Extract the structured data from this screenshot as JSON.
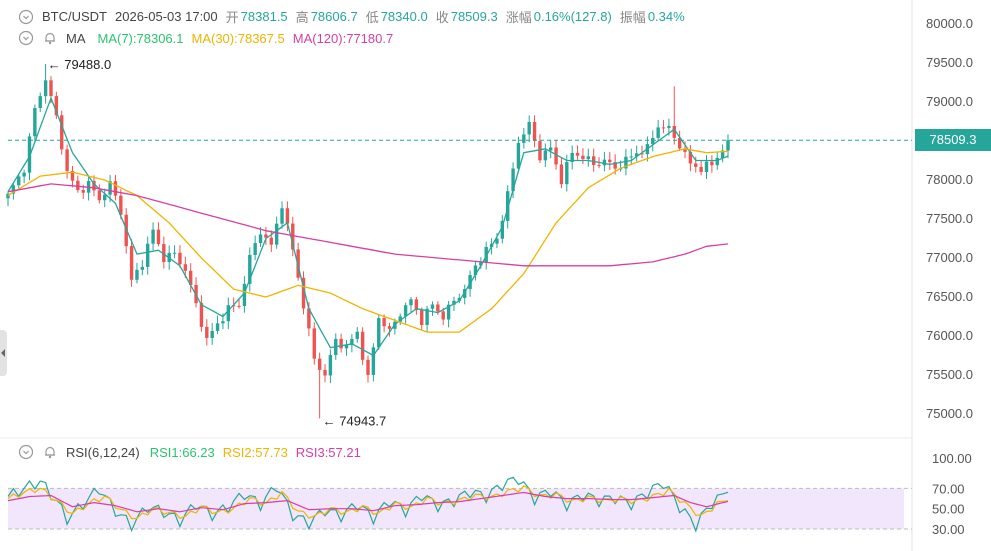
{
  "header": {
    "symbol": "BTC/USDT",
    "datetime": "2026-05-03 17:00",
    "open_label": "开",
    "open": "78381.5",
    "high_label": "高",
    "high": "78606.7",
    "low_label": "低",
    "low": "78340.0",
    "close_label": "收",
    "close": "78509.3",
    "change_label": "涨幅",
    "change": "0.16%(127.8)",
    "amplitude_label": "振幅",
    "amplitude": "0.34%"
  },
  "ma_legend": {
    "name": "MA",
    "ma7": "MA(7):78306.1",
    "ma30": "MA(30):78367.5",
    "ma120": "MA(120):77180.7"
  },
  "rsi_legend": {
    "name": "RSI(6,12,24)",
    "rsi1": "RSI1:66.23",
    "rsi2": "RSI2:57.73",
    "rsi3": "RSI3:57.21"
  },
  "price_label": "78509.3",
  "colors": {
    "up": "#26a69a",
    "down": "#ef5350",
    "ma7": "#26a69a",
    "ma30": "#f0b400",
    "ma120": "#d63fa6",
    "rsi1": "#26a69a",
    "rsi2": "#f0b400",
    "rsi3": "#d63fa6",
    "rsi_band": "#f1e6fb"
  },
  "chart_data": [
    {
      "type": "candlestick",
      "title": "BTC/USDT",
      "y_ticks": [
        80000.0,
        79500.0,
        79000.0,
        78500.0,
        78000.0,
        77500.0,
        77000.0,
        76500.0,
        76000.0,
        75500.0,
        75000.0
      ],
      "ylim": [
        74800,
        80150
      ],
      "current_price": 78509.3,
      "annotations": [
        {
          "text": "← 79488.0",
          "value": 79488.0,
          "label": "max"
        },
        {
          "text": "← 74943.7",
          "value": 74943.7,
          "label": "min"
        }
      ],
      "price_anchors": [
        [
          0,
          77800
        ],
        [
          3,
          78150
        ],
        [
          5,
          78900
        ],
        [
          7,
          79300
        ],
        [
          9,
          78800
        ],
        [
          11,
          78100
        ],
        [
          13,
          77850
        ],
        [
          15,
          77950
        ],
        [
          17,
          77750
        ],
        [
          19,
          77950
        ],
        [
          21,
          77600
        ],
        [
          23,
          76700
        ],
        [
          25,
          76950
        ],
        [
          27,
          77350
        ],
        [
          29,
          77000
        ],
        [
          31,
          77050
        ],
        [
          33,
          76850
        ],
        [
          35,
          76400
        ],
        [
          37,
          75950
        ],
        [
          39,
          76150
        ],
        [
          41,
          76350
        ],
        [
          43,
          76400
        ],
        [
          45,
          77000
        ],
        [
          47,
          77350
        ],
        [
          49,
          77150
        ],
        [
          51,
          77700
        ],
        [
          53,
          77100
        ],
        [
          55,
          76400
        ],
        [
          57,
          75700
        ],
        [
          59,
          75500
        ],
        [
          61,
          75950
        ],
        [
          63,
          75850
        ],
        [
          65,
          76050
        ],
        [
          67,
          75450
        ],
        [
          69,
          76250
        ],
        [
          71,
          76050
        ],
        [
          73,
          76300
        ],
        [
          75,
          76450
        ],
        [
          77,
          76200
        ],
        [
          79,
          76400
        ],
        [
          81,
          76250
        ],
        [
          83,
          76450
        ],
        [
          85,
          76600
        ],
        [
          87,
          76900
        ],
        [
          89,
          77100
        ],
        [
          91,
          77250
        ],
        [
          93,
          77800
        ],
        [
          95,
          78500
        ],
        [
          97,
          78700
        ],
        [
          99,
          78300
        ],
        [
          101,
          78400
        ],
        [
          103,
          78000
        ],
        [
          105,
          78350
        ],
        [
          107,
          78300
        ],
        [
          109,
          78200
        ],
        [
          111,
          78250
        ],
        [
          113,
          78150
        ],
        [
          115,
          78250
        ],
        [
          117,
          78350
        ],
        [
          119,
          78400
        ],
        [
          121,
          78700
        ],
        [
          123,
          78650
        ],
        [
          125,
          78450
        ],
        [
          127,
          78200
        ],
        [
          129,
          78150
        ],
        [
          131,
          78200
        ],
        [
          133,
          78400
        ],
        [
          134,
          78509.3
        ]
      ],
      "ma_series": [
        {
          "name": "MA(7)",
          "points": [
            [
              0,
              77850
            ],
            [
              4,
              78300
            ],
            [
              8,
              79050
            ],
            [
              12,
              78350
            ],
            [
              16,
              77950
            ],
            [
              20,
              77700
            ],
            [
              24,
              77050
            ],
            [
              28,
              77100
            ],
            [
              32,
              76900
            ],
            [
              36,
              76400
            ],
            [
              40,
              76250
            ],
            [
              44,
              76550
            ],
            [
              48,
              77250
            ],
            [
              52,
              77450
            ],
            [
              56,
              76350
            ],
            [
              60,
              75850
            ],
            [
              64,
              75900
            ],
            [
              68,
              75750
            ],
            [
              72,
              76150
            ],
            [
              76,
              76350
            ],
            [
              80,
              76300
            ],
            [
              84,
              76450
            ],
            [
              88,
              76900
            ],
            [
              92,
              77400
            ],
            [
              96,
              78350
            ],
            [
              100,
              78400
            ],
            [
              104,
              78250
            ],
            [
              108,
              78250
            ],
            [
              112,
              78200
            ],
            [
              116,
              78250
            ],
            [
              120,
              78450
            ],
            [
              124,
              78650
            ],
            [
              128,
              78250
            ],
            [
              132,
              78250
            ],
            [
              134,
              78306.1
            ]
          ]
        },
        {
          "name": "MA(30)",
          "points": [
            [
              0,
              77800
            ],
            [
              6,
              78050
            ],
            [
              12,
              78100
            ],
            [
              18,
              78000
            ],
            [
              24,
              77800
            ],
            [
              30,
              77450
            ],
            [
              36,
              77000
            ],
            [
              42,
              76600
            ],
            [
              48,
              76500
            ],
            [
              54,
              76650
            ],
            [
              60,
              76550
            ],
            [
              66,
              76350
            ],
            [
              72,
              76200
            ],
            [
              78,
              76050
            ],
            [
              84,
              76050
            ],
            [
              90,
              76350
            ],
            [
              96,
              76800
            ],
            [
              102,
              77450
            ],
            [
              108,
              77900
            ],
            [
              114,
              78150
            ],
            [
              120,
              78300
            ],
            [
              126,
              78400
            ],
            [
              130,
              78350
            ],
            [
              134,
              78367.5
            ]
          ]
        },
        {
          "name": "MA(120)",
          "points": [
            [
              0,
              77850
            ],
            [
              8,
              77950
            ],
            [
              16,
              77900
            ],
            [
              24,
              77800
            ],
            [
              32,
              77650
            ],
            [
              40,
              77500
            ],
            [
              48,
              77350
            ],
            [
              56,
              77250
            ],
            [
              64,
              77150
            ],
            [
              72,
              77050
            ],
            [
              80,
              77000
            ],
            [
              88,
              76950
            ],
            [
              96,
              76900
            ],
            [
              104,
              76900
            ],
            [
              112,
              76900
            ],
            [
              120,
              76950
            ],
            [
              126,
              77050
            ],
            [
              130,
              77150
            ],
            [
              134,
              77180.7
            ]
          ]
        }
      ]
    },
    {
      "type": "line",
      "title": "RSI(6,12,24)",
      "y_ticks": [
        100.0,
        70.0,
        50.0,
        30.0
      ],
      "ylim": [
        30,
        100
      ],
      "band": [
        30,
        70
      ],
      "series": [
        {
          "name": "RSI1",
          "points": [
            [
              0,
              62
            ],
            [
              3,
              70
            ],
            [
              6,
              77
            ],
            [
              9,
              58
            ],
            [
              11,
              40
            ],
            [
              14,
              55
            ],
            [
              17,
              70
            ],
            [
              20,
              48
            ],
            [
              23,
              34
            ],
            [
              26,
              52
            ],
            [
              29,
              47
            ],
            [
              32,
              38
            ],
            [
              35,
              55
            ],
            [
              38,
              44
            ],
            [
              41,
              52
            ],
            [
              44,
              65
            ],
            [
              47,
              54
            ],
            [
              50,
              73
            ],
            [
              53,
              44
            ],
            [
              56,
              36
            ],
            [
              59,
              49
            ],
            [
              62,
              43
            ],
            [
              65,
              55
            ],
            [
              68,
              41
            ],
            [
              71,
              58
            ],
            [
              74,
              48
            ],
            [
              77,
              64
            ],
            [
              80,
              53
            ],
            [
              83,
              58
            ],
            [
              86,
              67
            ],
            [
              89,
              62
            ],
            [
              92,
              74
            ],
            [
              95,
              80
            ],
            [
              98,
              60
            ],
            [
              101,
              68
            ],
            [
              104,
              54
            ],
            [
              107,
              64
            ],
            [
              110,
              58
            ],
            [
              113,
              61
            ],
            [
              116,
              55
            ],
            [
              119,
              66
            ],
            [
              122,
              76
            ],
            [
              125,
              52
            ],
            [
              128,
              34
            ],
            [
              131,
              56
            ],
            [
              134,
              66.23
            ]
          ]
        },
        {
          "name": "RSI2",
          "points": [
            [
              0,
              60
            ],
            [
              3,
              66
            ],
            [
              6,
              70
            ],
            [
              9,
              58
            ],
            [
              12,
              45
            ],
            [
              15,
              55
            ],
            [
              18,
              62
            ],
            [
              21,
              49
            ],
            [
              24,
              40
            ],
            [
              27,
              50
            ],
            [
              30,
              46
            ],
            [
              33,
              42
            ],
            [
              36,
              52
            ],
            [
              39,
              46
            ],
            [
              42,
              50
            ],
            [
              45,
              60
            ],
            [
              48,
              55
            ],
            [
              51,
              66
            ],
            [
              54,
              47
            ],
            [
              57,
              42
            ],
            [
              60,
              50
            ],
            [
              63,
              46
            ],
            [
              66,
              52
            ],
            [
              69,
              45
            ],
            [
              72,
              55
            ],
            [
              75,
              51
            ],
            [
              78,
              60
            ],
            [
              81,
              55
            ],
            [
              84,
              58
            ],
            [
              87,
              63
            ],
            [
              90,
              61
            ],
            [
              93,
              67
            ],
            [
              96,
              71
            ],
            [
              99,
              62
            ],
            [
              102,
              64
            ],
            [
              105,
              57
            ],
            [
              108,
              61
            ],
            [
              111,
              58
            ],
            [
              114,
              60
            ],
            [
              117,
              57
            ],
            [
              120,
              62
            ],
            [
              123,
              68
            ],
            [
              126,
              55
            ],
            [
              129,
              42
            ],
            [
              132,
              55
            ],
            [
              134,
              57.73
            ]
          ]
        },
        {
          "name": "RSI3",
          "points": [
            [
              0,
              58
            ],
            [
              4,
              62
            ],
            [
              8,
              63
            ],
            [
              12,
              52
            ],
            [
              16,
              56
            ],
            [
              20,
              53
            ],
            [
              24,
              47
            ],
            [
              28,
              50
            ],
            [
              32,
              47
            ],
            [
              36,
              51
            ],
            [
              40,
              49
            ],
            [
              44,
              55
            ],
            [
              48,
              56
            ],
            [
              52,
              58
            ],
            [
              56,
              49
            ],
            [
              60,
              50
            ],
            [
              64,
              50
            ],
            [
              68,
              48
            ],
            [
              72,
              53
            ],
            [
              76,
              54
            ],
            [
              80,
              56
            ],
            [
              84,
              57
            ],
            [
              88,
              60
            ],
            [
              92,
              63
            ],
            [
              96,
              66
            ],
            [
              100,
              62
            ],
            [
              104,
              60
            ],
            [
              108,
              60
            ],
            [
              112,
              59
            ],
            [
              116,
              59
            ],
            [
              120,
              61
            ],
            [
              124,
              63
            ],
            [
              127,
              56
            ],
            [
              130,
              52
            ],
            [
              134,
              57.21
            ]
          ]
        }
      ]
    }
  ]
}
